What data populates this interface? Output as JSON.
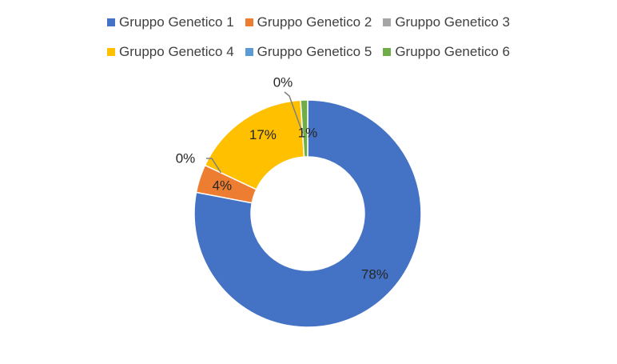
{
  "chart_data": {
    "type": "pie",
    "variant": "donut",
    "title": "",
    "legend_placement": "top",
    "categories": [
      "Gruppo Genetico 1",
      "Gruppo Genetico 2",
      "Gruppo Genetico 3",
      "Gruppo Genetico 4",
      "Gruppo Genetico 5",
      "Gruppo Genetico 6"
    ],
    "values": [
      78,
      4,
      0,
      17,
      0,
      1
    ],
    "labels": [
      "78%",
      "4%",
      "0%",
      "17%",
      "0%",
      "1%"
    ],
    "colors": [
      "#4472C4",
      "#ED7D31",
      "#A5A5A5",
      "#FFC000",
      "#5B9BD5",
      "#70AD47"
    ]
  }
}
